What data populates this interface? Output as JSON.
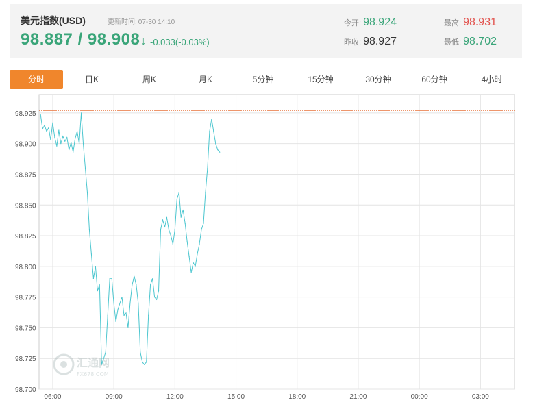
{
  "quote": {
    "title": "美元指数(USD)",
    "update_label": "更新时间:",
    "update_time": "07-30 14:10",
    "price": "98.887 / 98.908",
    "arrow": "↓",
    "change": "-0.033(-0.03%)",
    "open_label": "今开:",
    "open_value": "98.924",
    "prev_close_label": "昨收:",
    "prev_close_value": "98.927",
    "high_label": "最高:",
    "high_value": "98.931",
    "low_label": "最低:",
    "low_value": "98.702",
    "colors": {
      "up": "#e2534e",
      "down": "#3aa579"
    }
  },
  "tabs": [
    "分时",
    "日K",
    "周K",
    "月K",
    "5分钟",
    "15分钟",
    "30分钟",
    "60分钟",
    "4小时"
  ],
  "active_tab": 0,
  "watermark": {
    "brand": "汇通网",
    "domain": "FX678.COM"
  },
  "chart_data": {
    "type": "line",
    "title": "",
    "xlabel": "",
    "ylabel": "",
    "ylim": [
      98.7,
      98.94
    ],
    "y_ticks": [
      98.7,
      98.725,
      98.75,
      98.775,
      98.8,
      98.825,
      98.85,
      98.875,
      98.9,
      98.925
    ],
    "y_tick_labels": [
      "98.700",
      "98.725",
      "98.750",
      "98.775",
      "98.800",
      "98.825",
      "98.850",
      "98.875",
      "98.900",
      "98.925"
    ],
    "x_range_hours": [
      5.33,
      28.67
    ],
    "x_ticks": [
      6,
      9,
      12,
      15,
      18,
      21,
      24,
      27
    ],
    "x_tick_labels": [
      "06:00",
      "09:00",
      "12:00",
      "15:00",
      "18:00",
      "21:00",
      "00:00",
      "03:00"
    ],
    "reference_line": 98.927,
    "line_color": "#4cc6cf",
    "reference_color": "#e8743c",
    "grid": true,
    "series": [
      {
        "x": [
          5.4,
          5.5,
          5.6,
          5.7,
          5.8,
          5.9,
          6.0,
          6.1,
          6.2,
          6.3,
          6.4,
          6.5,
          6.6,
          6.7,
          6.8,
          6.9,
          7.0,
          7.1,
          7.2,
          7.3,
          7.4,
          7.5,
          7.6,
          7.7,
          7.8,
          7.9,
          8.0,
          8.1,
          8.2,
          8.3,
          8.4,
          8.5,
          8.6,
          8.7,
          8.8,
          8.9,
          9.0,
          9.1,
          9.2,
          9.3,
          9.4,
          9.5,
          9.6,
          9.7,
          9.8,
          9.9,
          10.0,
          10.1,
          10.2,
          10.3,
          10.4,
          10.5,
          10.6,
          10.7,
          10.8,
          10.9,
          11.0,
          11.1,
          11.2,
          11.3,
          11.4,
          11.5,
          11.6,
          11.7,
          11.8,
          11.9,
          12.0,
          12.1,
          12.2,
          12.3,
          12.4,
          12.5,
          12.6,
          12.7,
          12.8,
          12.9,
          13.0,
          13.1,
          13.2,
          13.3,
          13.4,
          13.5,
          13.6,
          13.7,
          13.8,
          13.9,
          14.0,
          14.1,
          14.2
        ],
        "y": [
          98.924,
          98.912,
          98.915,
          98.91,
          98.913,
          98.903,
          98.917,
          98.905,
          98.898,
          98.911,
          98.9,
          98.906,
          98.902,
          98.905,
          98.895,
          98.901,
          98.893,
          98.904,
          98.91,
          98.9,
          98.925,
          98.9,
          98.88,
          98.86,
          98.83,
          98.81,
          98.79,
          98.8,
          98.78,
          98.785,
          98.72,
          98.725,
          98.73,
          98.76,
          98.79,
          98.79,
          98.77,
          98.755,
          98.765,
          98.77,
          98.775,
          98.76,
          98.762,
          98.75,
          98.77,
          98.785,
          98.792,
          98.785,
          98.77,
          98.73,
          98.722,
          98.72,
          98.722,
          98.76,
          98.785,
          98.79,
          98.775,
          98.773,
          98.78,
          98.83,
          98.838,
          98.832,
          98.84,
          98.83,
          98.825,
          98.818,
          98.83,
          98.855,
          98.86,
          98.84,
          98.846,
          98.835,
          98.82,
          98.808,
          98.795,
          98.803,
          98.8,
          98.81,
          98.818,
          98.83,
          98.835,
          98.86,
          98.88,
          98.91,
          98.92,
          98.91,
          98.9,
          98.895,
          98.893
        ]
      }
    ]
  }
}
